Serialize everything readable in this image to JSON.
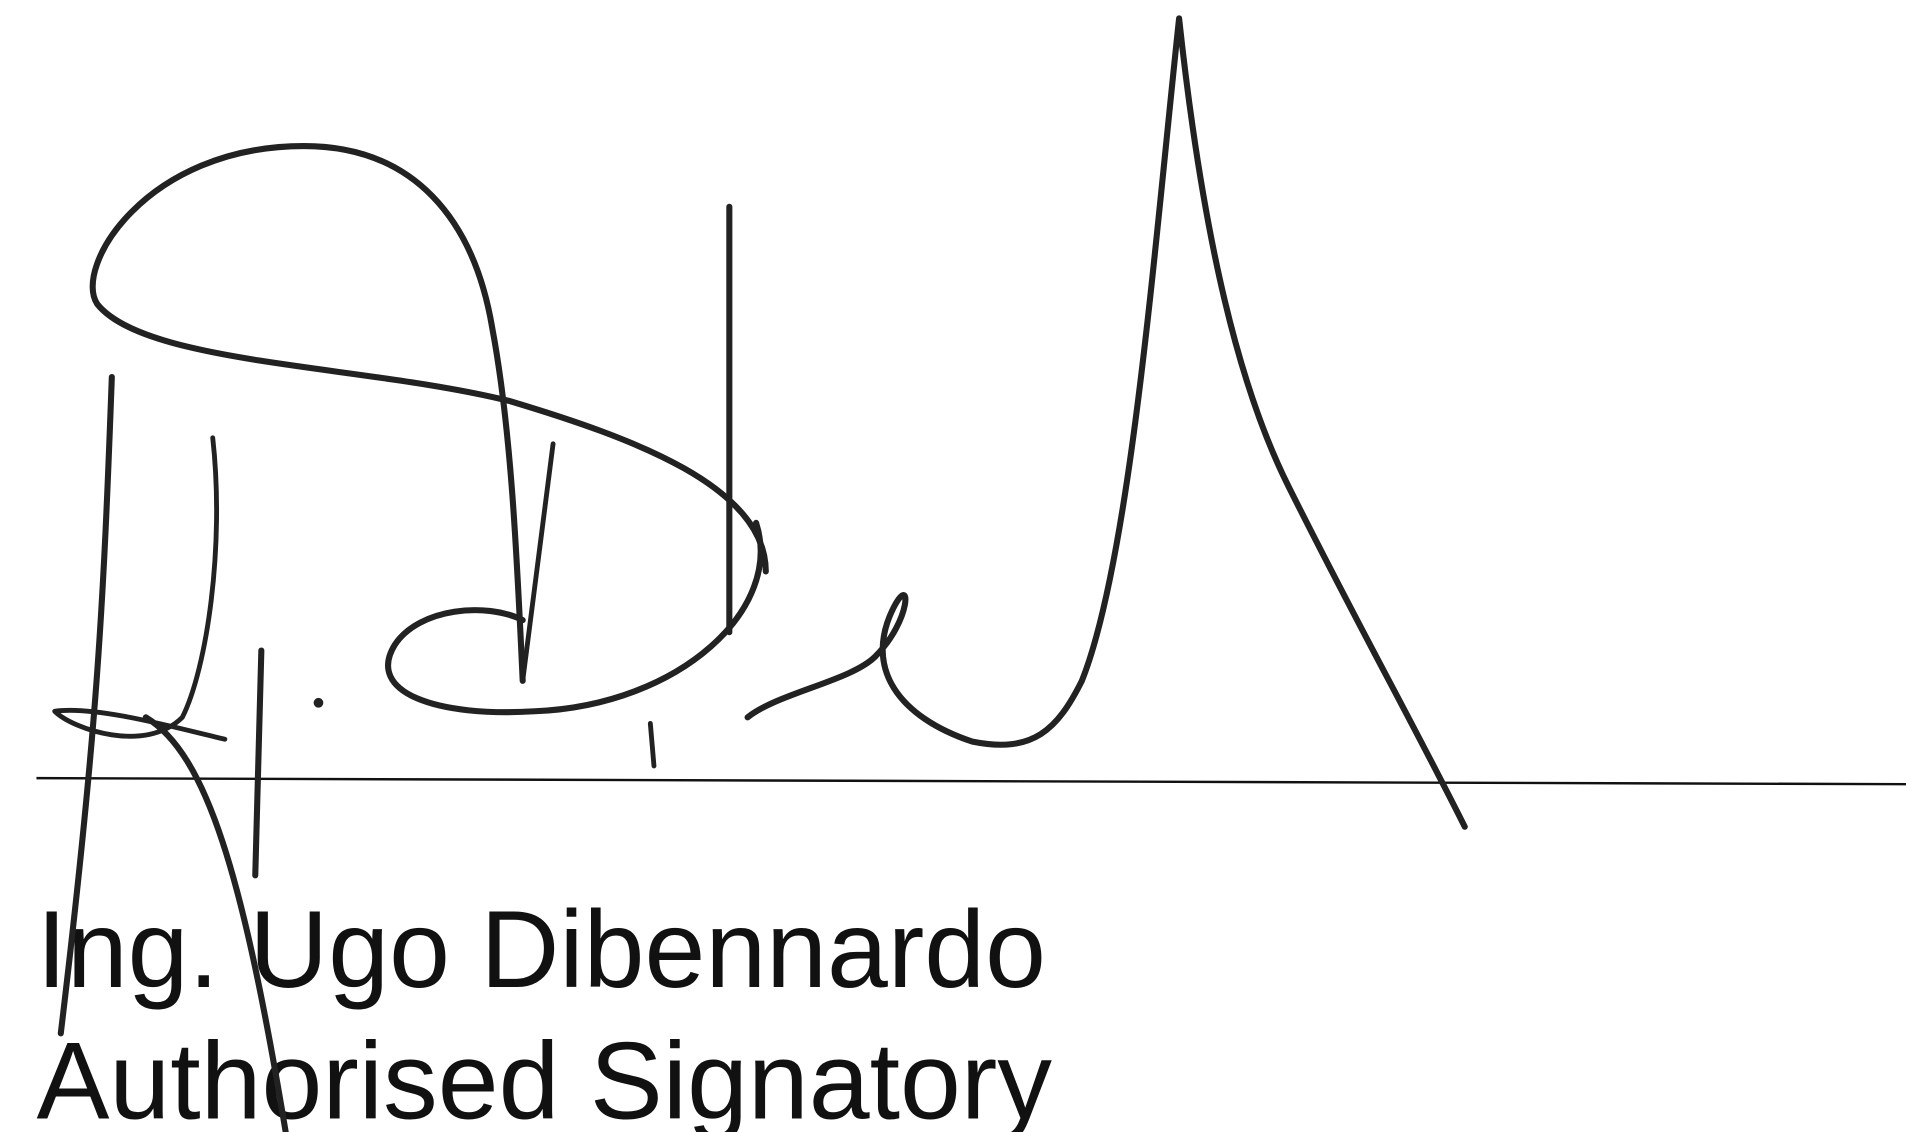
{
  "signatory": {
    "name": "Ing. Ugo Dibennardo",
    "role": "Authorised Signatory"
  }
}
